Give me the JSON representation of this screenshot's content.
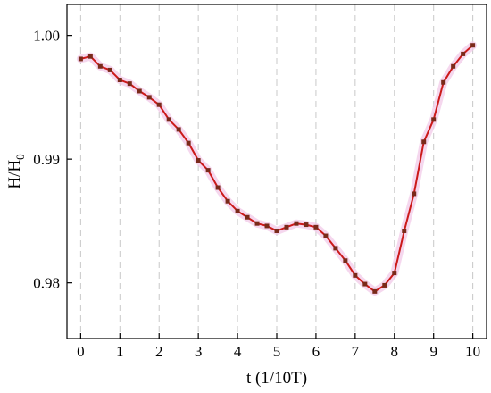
{
  "chart_data": {
    "type": "line",
    "title": "",
    "xlabel": "t (1/10T)",
    "ylabel_main": "H/H",
    "ylabel_sub": "0",
    "xlim": [
      -0.35,
      10.35
    ],
    "ylim": [
      0.9755,
      1.0025
    ],
    "x_ticks": [
      0,
      1,
      2,
      3,
      4,
      5,
      6,
      7,
      8,
      9,
      10
    ],
    "x_tick_labels": [
      "0",
      "1",
      "2",
      "3",
      "4",
      "5",
      "6",
      "7",
      "8",
      "9",
      "10"
    ],
    "y_ticks": [
      0.98,
      0.99,
      1.0
    ],
    "y_tick_labels": [
      "0.98",
      "0.99",
      "1.00"
    ],
    "grid": "vertical-dashed",
    "colors": {
      "line": "#cc1a1a",
      "marker": "#7a2a1a",
      "halo": "#f2c9e8",
      "grid": "#c8c8c8"
    },
    "series": [
      {
        "x": [
          0.0,
          0.25,
          0.5,
          0.75,
          1.0,
          1.25,
          1.5,
          1.75,
          2.0,
          2.25,
          2.5,
          2.75,
          3.0,
          3.25,
          3.5,
          3.75,
          4.0,
          4.25,
          4.5,
          4.75,
          5.0,
          5.25,
          5.5,
          5.75,
          6.0,
          6.25,
          6.5,
          6.75,
          7.0,
          7.25,
          7.5,
          7.75,
          8.0,
          8.25,
          8.5,
          8.75,
          9.0,
          9.25,
          9.5,
          9.75,
          10.0
        ],
        "y": [
          0.9981,
          0.9983,
          0.9975,
          0.9972,
          0.9964,
          0.9961,
          0.9955,
          0.995,
          0.9944,
          0.9932,
          0.9924,
          0.9913,
          0.9899,
          0.9891,
          0.9877,
          0.9866,
          0.9858,
          0.9853,
          0.9848,
          0.9846,
          0.9842,
          0.9845,
          0.9848,
          0.9847,
          0.9845,
          0.9838,
          0.9828,
          0.9818,
          0.9806,
          0.9799,
          0.9793,
          0.9798,
          0.9808,
          0.9842,
          0.9872,
          0.9914,
          0.9932,
          0.9962,
          0.9975,
          0.9985,
          0.9992
        ]
      }
    ]
  }
}
